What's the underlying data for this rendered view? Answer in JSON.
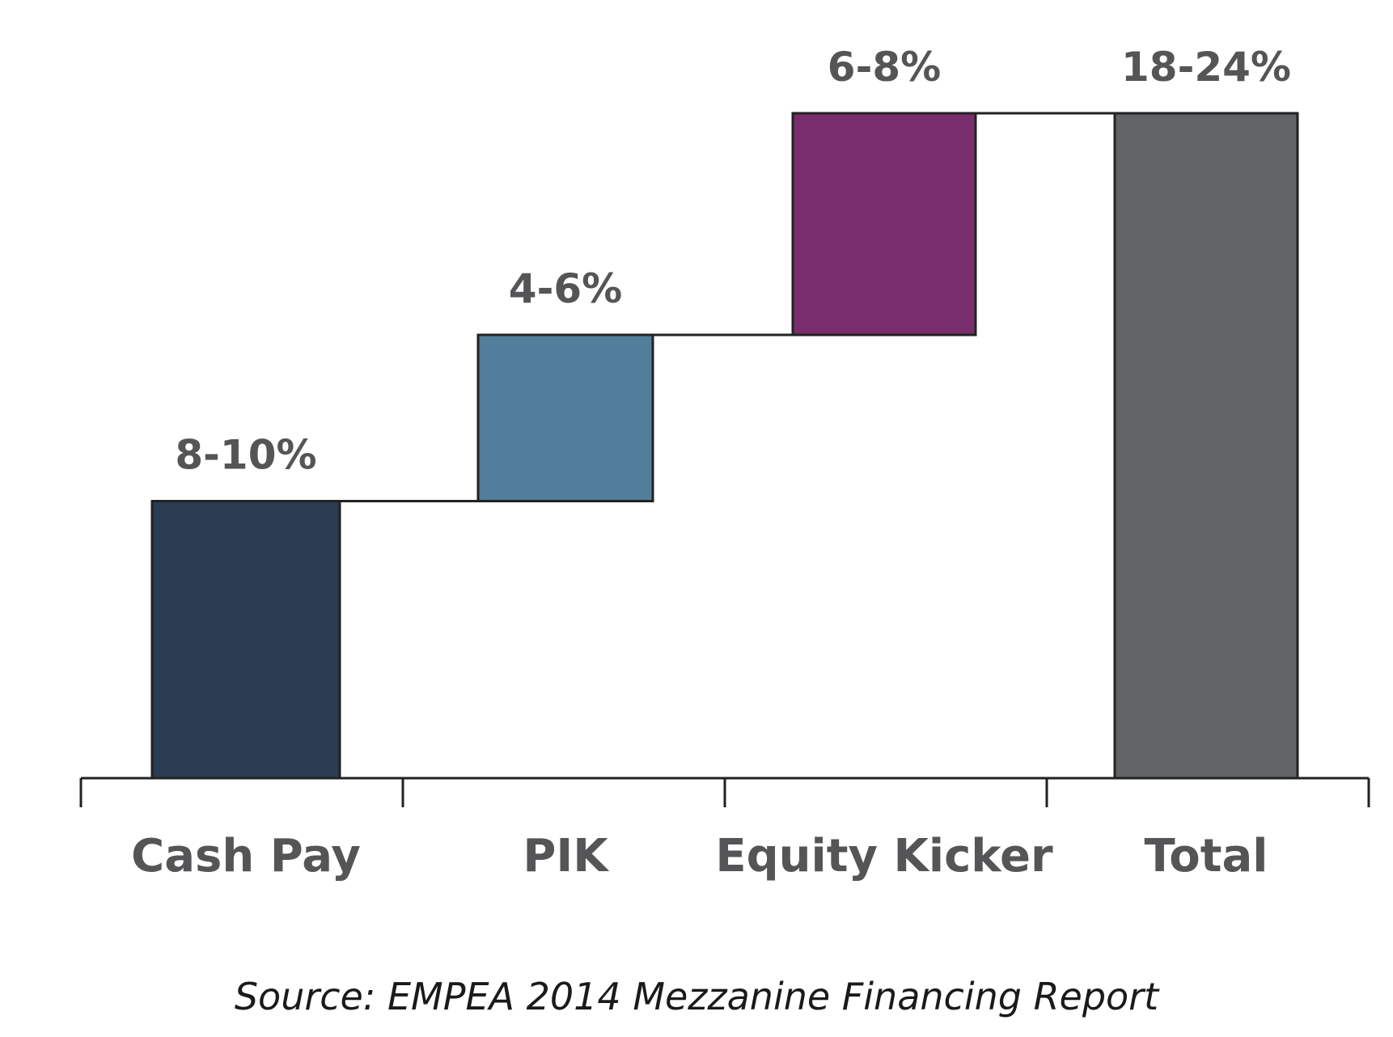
{
  "chart_data": {
    "type": "bar",
    "subtype": "waterfall",
    "categories": [
      "Cash Pay",
      "PIK",
      "Equity Kicker",
      "Total"
    ],
    "data_labels": [
      "8-10%",
      "4-6%",
      "6-8%",
      "18-24%"
    ],
    "segments": [
      {
        "category": "Cash Pay",
        "start": 0,
        "end": 10
      },
      {
        "category": "PIK",
        "start": 10,
        "end": 16
      },
      {
        "category": "Equity Kicker",
        "start": 16,
        "end": 24
      },
      {
        "category": "Total",
        "start": 0,
        "end": 24
      }
    ],
    "colors": [
      "#293c52",
      "#527e9b",
      "#7a2d6c",
      "#626365"
    ],
    "ylim": [
      0,
      24
    ],
    "grid": false,
    "legend": "none"
  },
  "source_note": "Source: EMPEA 2014 Mezzanine Financing Report"
}
